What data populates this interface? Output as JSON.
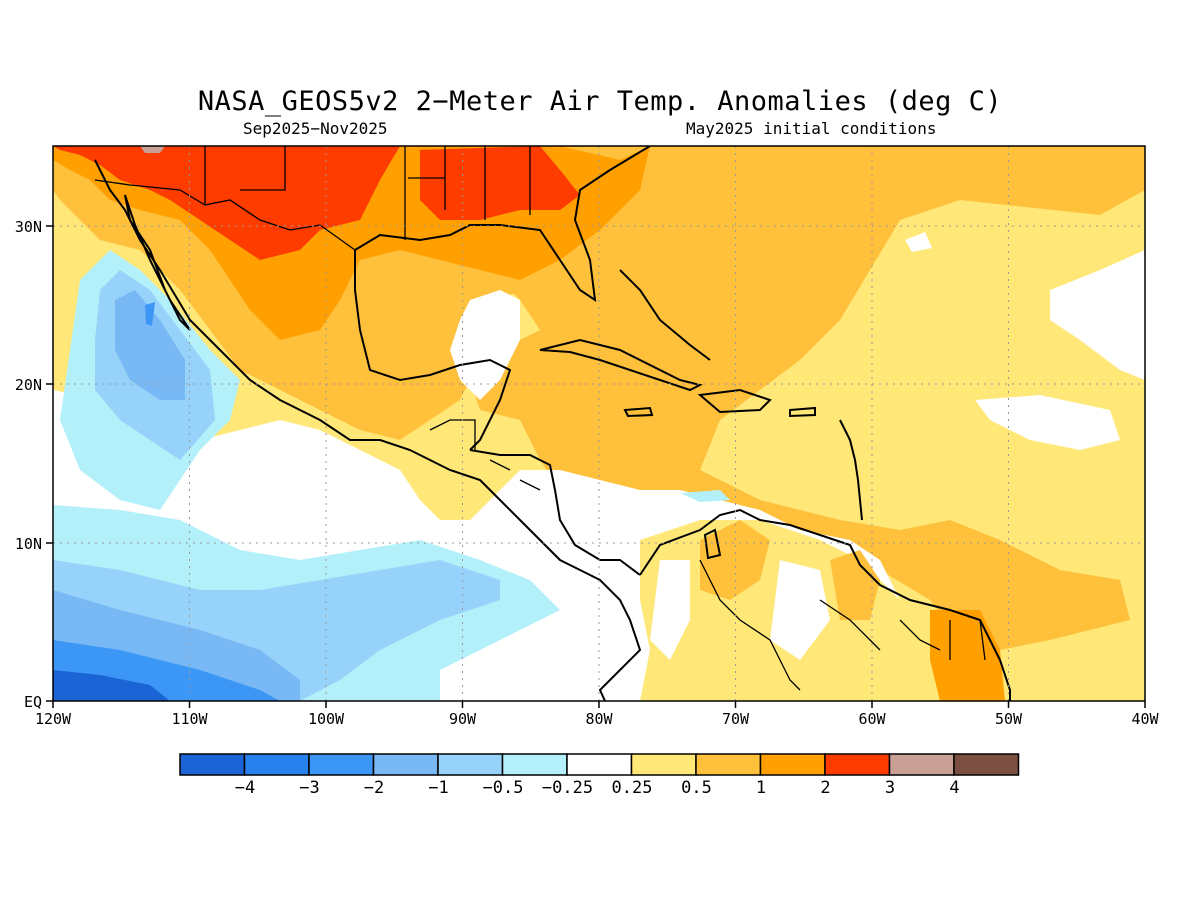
{
  "title": "NASA_GEOS5v2 2−Meter Air Temp. Anomalies (deg C)",
  "subtitle_left": "Sep2025−Nov2025",
  "subtitle_right": "May2025 initial conditions",
  "map": {
    "lon_range": [
      -120,
      -40
    ],
    "lat_range": [
      0,
      35
    ],
    "x_ticks": [
      "120W",
      "110W",
      "100W",
      "90W",
      "80W",
      "70W",
      "60W",
      "50W",
      "40W"
    ],
    "y_ticks": [
      "EQ",
      "10N",
      "20N",
      "30N"
    ],
    "grid": "dotted"
  },
  "colorbar": {
    "colors": [
      "#1a64d6",
      "#2882ee",
      "#3c96f5",
      "#78b9f5",
      "#96d2fa",
      "#b4f0fa",
      "#ffffff",
      "#ffe878",
      "#ffc03c",
      "#ffa000",
      "#ff3c00",
      "#c8a096",
      "#7a4e40"
    ],
    "labels": [
      "−4",
      "−3",
      "−2",
      "−1",
      "−0.5",
      "−0.25",
      "0.25",
      "0.5",
      "1",
      "2",
      "3",
      "4"
    ]
  }
}
